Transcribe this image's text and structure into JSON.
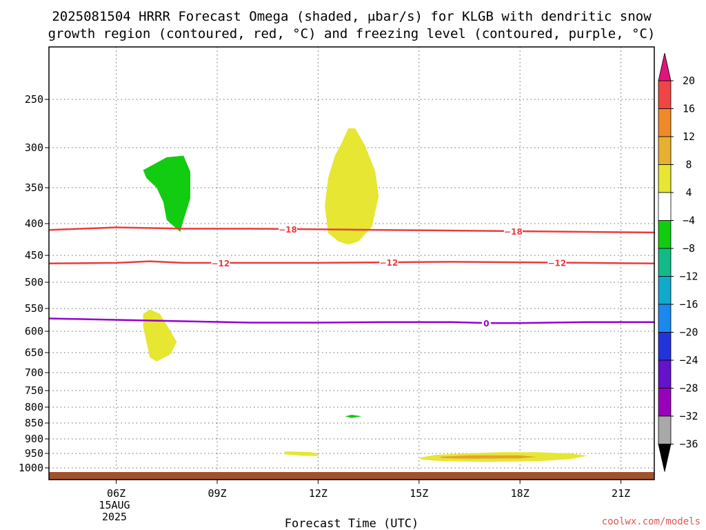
{
  "title": {
    "line1": "2025081504 HRRR Forecast Omega (shaded, μbar/s) for KLGB with dendritic snow",
    "line2": "growth region (contoured, red, °C) and freezing level (contoured, purple, °C)"
  },
  "xlabel": "Forecast Time (UTC)",
  "credit": "coolwx.com/models",
  "date_label": {
    "day": "15AUG",
    "year": "2025"
  },
  "colors": {
    "ground": "#a0522d",
    "dgz_contour": "#ee3b3b",
    "freezing_contour": "#9400d3"
  },
  "chart_data": {
    "type": "heatmap",
    "x_axis": {
      "label": "Forecast Time (UTC)",
      "range_hours": [
        4,
        22
      ],
      "ticks": [
        {
          "h": 6,
          "label": "06Z"
        },
        {
          "h": 9,
          "label": "09Z"
        },
        {
          "h": 12,
          "label": "12Z"
        },
        {
          "h": 15,
          "label": "15Z"
        },
        {
          "h": 18,
          "label": "18Z"
        },
        {
          "h": 21,
          "label": "21Z"
        }
      ],
      "grid": "dotted"
    },
    "y_axis": {
      "scale": "pressure (inverted)",
      "range_mb": [
        1030,
        200
      ],
      "ticks": [
        250,
        300,
        350,
        400,
        450,
        500,
        550,
        600,
        650,
        700,
        750,
        800,
        850,
        900,
        950,
        1000
      ],
      "grid": "dotted"
    },
    "colorbar": {
      "labels": [
        "20",
        "16",
        "12",
        "8",
        "4",
        "−4",
        "−8",
        "−12",
        "−16",
        "−20",
        "−24",
        "−28",
        "−32",
        "−36"
      ],
      "segments": [
        {
          "color": "#e6e633",
          "range": "4 to 8"
        },
        {
          "color": "#e8b030",
          "range": "8 to 12"
        },
        {
          "color": "#f08a28",
          "range": "12 to 16"
        },
        {
          "color": "#f04545",
          "range": "16 to 20"
        },
        {
          "color": "#e0147f",
          "range": "> 20"
        },
        {
          "color": "#ffffff",
          "range": "-4 to 4"
        },
        {
          "color": "#11cc11",
          "range": "-8 to -4"
        },
        {
          "color": "#11bb88",
          "range": "-12 to -8"
        },
        {
          "color": "#11aacc",
          "range": "-16 to -12"
        },
        {
          "color": "#1a88ee",
          "range": "-20 to -16"
        },
        {
          "color": "#2233dd",
          "range": "-24 to -20"
        },
        {
          "color": "#6611cc",
          "range": "-28 to -24"
        },
        {
          "color": "#9900bb",
          "range": "-32 to -28"
        },
        {
          "color": "#a8a8a8",
          "range": "-36 to -32"
        },
        {
          "color": "#000000",
          "range": "< -36"
        }
      ]
    },
    "shaded_regions": [
      {
        "name": "green upper",
        "color": "#11cc11",
        "points": [
          [
            6.8,
            328
          ],
          [
            7.5,
            312
          ],
          [
            8.0,
            310
          ],
          [
            8.2,
            330
          ],
          [
            8.2,
            365
          ],
          [
            8.0,
            395
          ],
          [
            7.9,
            413
          ],
          [
            7.5,
            395
          ],
          [
            7.4,
            370
          ],
          [
            7.2,
            350
          ],
          [
            6.9,
            338
          ]
        ]
      },
      {
        "name": "yellow upper",
        "color": "#e6e633",
        "points": [
          [
            12.7,
            295
          ],
          [
            12.9,
            280
          ],
          [
            13.1,
            280
          ],
          [
            13.4,
            298
          ],
          [
            13.7,
            330
          ],
          [
            13.8,
            362
          ],
          [
            13.6,
            405
          ],
          [
            13.2,
            428
          ],
          [
            12.9,
            433
          ],
          [
            12.6,
            428
          ],
          [
            12.3,
            415
          ],
          [
            12.2,
            375
          ],
          [
            12.3,
            338
          ],
          [
            12.5,
            310
          ]
        ]
      },
      {
        "name": "yellow mid",
        "color": "#e6e633",
        "points": [
          [
            6.8,
            562
          ],
          [
            7.0,
            552
          ],
          [
            7.3,
            562
          ],
          [
            7.6,
            598
          ],
          [
            7.8,
            625
          ],
          [
            7.6,
            655
          ],
          [
            7.2,
            672
          ],
          [
            7.0,
            662
          ],
          [
            6.9,
            625
          ],
          [
            6.8,
            590
          ]
        ]
      },
      {
        "name": "green low",
        "color": "#11cc11",
        "points": [
          [
            12.8,
            829
          ],
          [
            13.0,
            824
          ],
          [
            13.3,
            829
          ],
          [
            13.0,
            834
          ]
        ]
      },
      {
        "name": "yellow low left",
        "color": "#e6e633",
        "points": [
          [
            11.0,
            943
          ],
          [
            11.7,
            945
          ],
          [
            12.0,
            949
          ],
          [
            12.0,
            959
          ],
          [
            11.5,
            958
          ],
          [
            11.0,
            953
          ]
        ]
      },
      {
        "name": "yellow low right",
        "color": "#e6e633",
        "points": [
          [
            15.0,
            965
          ],
          [
            15.5,
            955
          ],
          [
            16.5,
            949
          ],
          [
            17.5,
            946
          ],
          [
            18.5,
            946
          ],
          [
            19.5,
            950
          ],
          [
            20.0,
            958
          ],
          [
            19.5,
            970
          ],
          [
            18.5,
            977
          ],
          [
            17.0,
            979
          ],
          [
            15.8,
            977
          ],
          [
            15.1,
            972
          ]
        ]
      },
      {
        "name": "orange low right",
        "color": "#e8a030",
        "points": [
          [
            15.6,
            962
          ],
          [
            16.5,
            957
          ],
          [
            18.0,
            957
          ],
          [
            18.5,
            962
          ],
          [
            18.0,
            967
          ],
          [
            16.5,
            968
          ],
          [
            15.7,
            966
          ]
        ]
      }
    ],
    "contours": [
      {
        "name": "dgz_-18",
        "color": "#ee3b3b",
        "label": "−18",
        "label_at_h": [
          11.1,
          17.8
        ],
        "points": [
          [
            4,
            410
          ],
          [
            6,
            406
          ],
          [
            8,
            408
          ],
          [
            10,
            408
          ],
          [
            12,
            409
          ],
          [
            14,
            410
          ],
          [
            16,
            411
          ],
          [
            18,
            412
          ],
          [
            20,
            413
          ],
          [
            22,
            414
          ]
        ]
      },
      {
        "name": "dgz_-12",
        "color": "#ee3b3b",
        "label": "−12",
        "label_at_h": [
          9.1,
          14.1,
          19.1
        ],
        "points": [
          [
            4,
            465
          ],
          [
            6,
            464
          ],
          [
            7,
            461
          ],
          [
            8,
            464
          ],
          [
            10,
            464
          ],
          [
            12,
            464
          ],
          [
            14,
            463
          ],
          [
            16,
            462
          ],
          [
            18,
            463
          ],
          [
            20,
            464
          ],
          [
            22,
            465
          ]
        ]
      },
      {
        "name": "freezing_0",
        "color": "#9400d3",
        "label": "0",
        "label_at_h": [
          17.0
        ],
        "points": [
          [
            4,
            572
          ],
          [
            6,
            575
          ],
          [
            8,
            578
          ],
          [
            10,
            581
          ],
          [
            12,
            581
          ],
          [
            14,
            580
          ],
          [
            16,
            580
          ],
          [
            17,
            582
          ],
          [
            18,
            582
          ],
          [
            20,
            580
          ],
          [
            22,
            580
          ]
        ]
      }
    ],
    "ground_level_mb": 1015
  }
}
